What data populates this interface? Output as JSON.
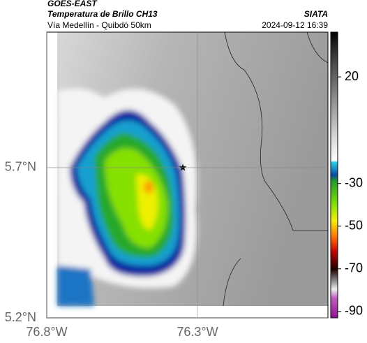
{
  "header": {
    "title": "GOES-EAST",
    "subtitle": "Temperatura de Brillo CH13",
    "source": "SIATA",
    "route": "Vía Medellín - Quibdó 50km",
    "datetime": "2024-09-12 16:39"
  },
  "map": {
    "xlim": [
      -76.8,
      -75.867
    ],
    "ylim": [
      5.2,
      6.151
    ],
    "xticks": [
      {
        "value": -76.8,
        "label": "76.8°W"
      },
      {
        "value": -76.3,
        "label": "76.3°W"
      }
    ],
    "yticks": [
      {
        "value": 5.7,
        "label": "5.7°N"
      },
      {
        "value": 5.2,
        "label": "5.2°N"
      }
    ]
  },
  "colorbar": {
    "clim": [
      -93,
      41
    ],
    "ticks": [
      20,
      -30,
      -50,
      -70,
      -90
    ]
  }
}
